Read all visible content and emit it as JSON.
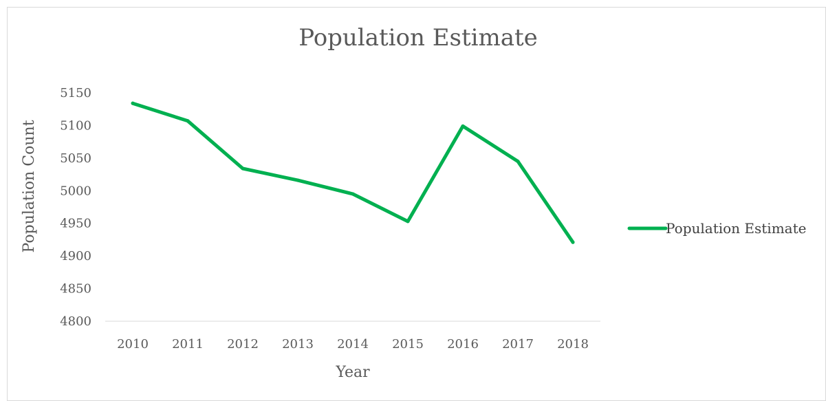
{
  "chart_data": {
    "type": "line",
    "title": "Population Estimate",
    "xlabel": "Year",
    "ylabel": "Population Count",
    "categories": [
      "2010",
      "2011",
      "2012",
      "2013",
      "2014",
      "2015",
      "2016",
      "2017",
      "2018"
    ],
    "yticks": [
      "4800",
      "4850",
      "4900",
      "4950",
      "5000",
      "5050",
      "5100",
      "5150"
    ],
    "ylim": [
      4800,
      5150
    ],
    "grid": false,
    "legend_position": "right",
    "series": [
      {
        "name": "Population Estimate",
        "color": "#00b050",
        "values": [
          5134,
          5107,
          5034,
          5016,
          4995,
          4953,
          5099,
          5045,
          4921
        ]
      }
    ]
  }
}
